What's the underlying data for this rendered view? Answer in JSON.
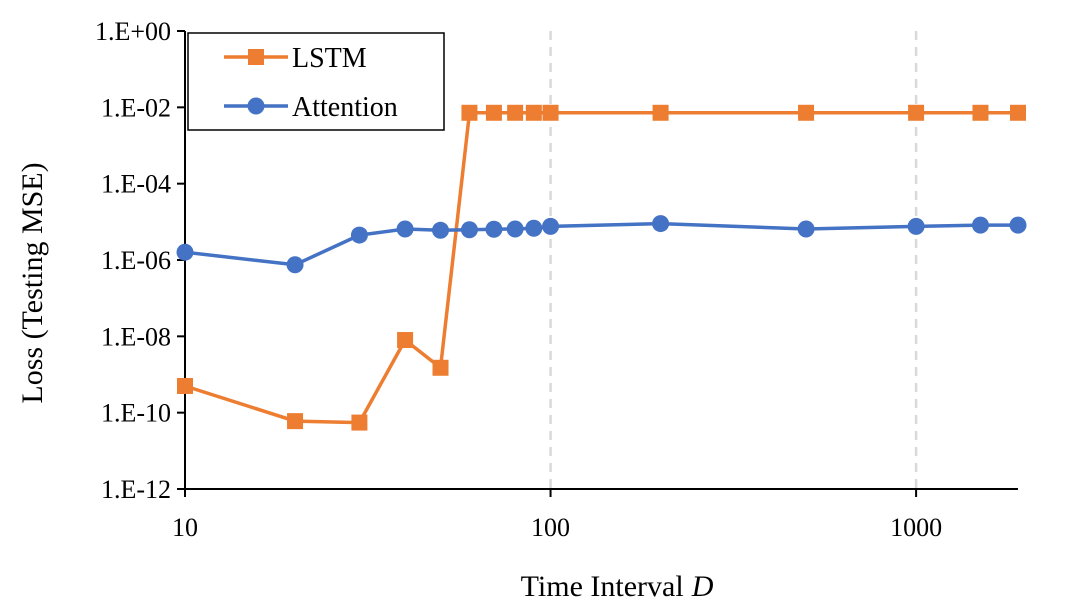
{
  "chart_data": {
    "type": "line",
    "title": "",
    "xlabel": "Time Interval",
    "xlabel_var": "D",
    "ylabel": "Loss (Testing MSE)",
    "xscale": "log",
    "yscale": "log",
    "xlim": [
      10,
      1900
    ],
    "ylim": [
      1e-12,
      1
    ],
    "x_ticks": [
      10,
      100,
      1000
    ],
    "x_tick_labels": [
      "10",
      "100",
      "1000"
    ],
    "y_ticks": [
      1,
      0.01,
      0.0001,
      1e-06,
      1e-08,
      1e-10,
      1e-12
    ],
    "y_tick_labels": [
      "1.E+00",
      "1.E-02",
      "1.E-04",
      "1.E-06",
      "1.E-08",
      "1.E-10",
      "1.E-12"
    ],
    "vertical_dashed_gridlines_at": [
      100,
      1000
    ],
    "legend_position": "top-left",
    "series": [
      {
        "name": "LSTM",
        "color": "#ED7D31",
        "marker": "square",
        "x": [
          10,
          20,
          30,
          40,
          50,
          60,
          70,
          80,
          90,
          100,
          200,
          500,
          1000,
          1500,
          1900
        ],
        "y": [
          5e-10,
          6e-11,
          5.5e-11,
          8e-09,
          1.5e-09,
          0.0072,
          0.0072,
          0.0072,
          0.0072,
          0.0072,
          0.0072,
          0.0072,
          0.0072,
          0.0072,
          0.0072
        ]
      },
      {
        "name": "Attention",
        "color": "#4472C4",
        "marker": "circle",
        "x": [
          10,
          20,
          30,
          40,
          50,
          60,
          70,
          80,
          90,
          100,
          200,
          500,
          1000,
          1500,
          1900
        ],
        "y": [
          1.6e-06,
          7.5e-07,
          4.5e-06,
          6.5e-06,
          6e-06,
          6.2e-06,
          6.4e-06,
          6.5e-06,
          6.8e-06,
          7.6e-06,
          9e-06,
          6.5e-06,
          7.6e-06,
          8.2e-06,
          8.2e-06
        ]
      }
    ]
  }
}
